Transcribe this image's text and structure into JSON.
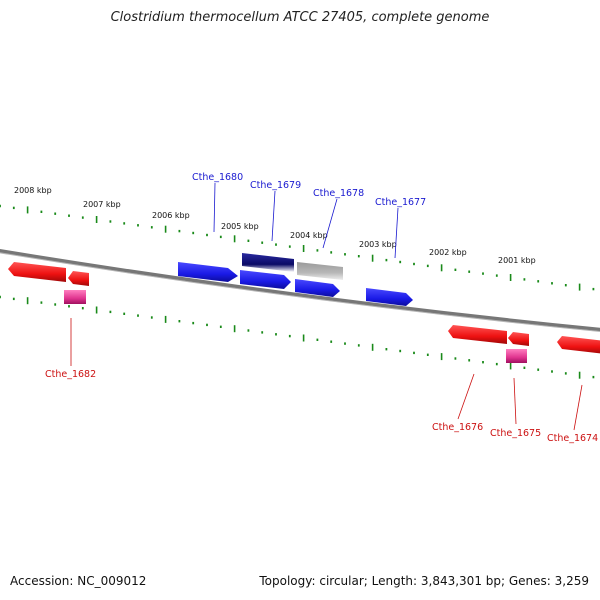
{
  "title": "Clostridium thermocellum ATCC 27405, complete genome",
  "footer": {
    "accession": "Accession: NC_009012",
    "topology": "Topology: circular; Length: 3,843,301 bp; Genes: 3,259"
  },
  "kbp_labels": [
    "2008 kbp",
    "2007 kbp",
    "2006 kbp",
    "2005 kbp",
    "2004 kbp",
    "2003 kbp",
    "2002 kbp",
    "2001 kbp"
  ],
  "gene_labels_top": [
    "Cthe_1680",
    "Cthe_1679",
    "Cthe_1678",
    "Cthe_1677"
  ],
  "gene_labels_bottom": [
    "Cthe_1682",
    "Cthe_1676",
    "Cthe_1675",
    "Cthe_1674"
  ],
  "colors": {
    "forward_gene": "#1a1ae6",
    "reverse_gene": "#ee1111",
    "rna_gene": "#e0348f",
    "selected_gene": "#0a0a66",
    "pseudo_gene": "#b0b0b0",
    "backbone": "#777777",
    "ticks": "#1a8a1a"
  }
}
